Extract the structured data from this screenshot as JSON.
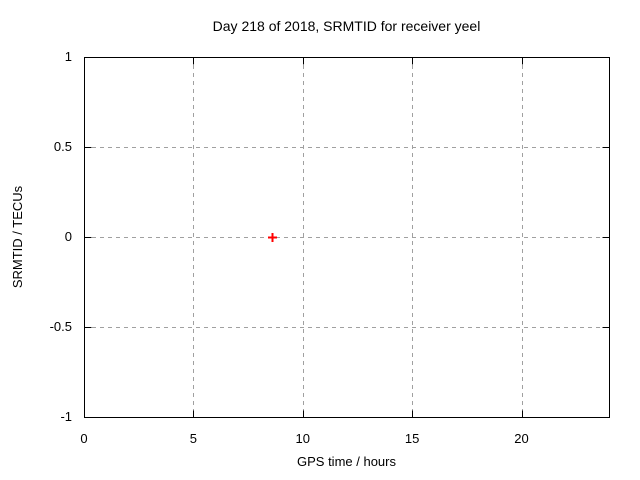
{
  "chart_data": {
    "type": "scatter",
    "title": "Day 218 of 2018, SRMTID for receiver yeel",
    "xlabel": "GPS time / hours",
    "ylabel": "SRMTID / TECUs",
    "xlim": [
      0,
      24
    ],
    "ylim": [
      -1,
      1
    ],
    "xticks": [
      {
        "value": 0,
        "label": "0"
      },
      {
        "value": 5,
        "label": "5"
      },
      {
        "value": 10,
        "label": "10"
      },
      {
        "value": 15,
        "label": "15"
      },
      {
        "value": 20,
        "label": "20"
      }
    ],
    "yticks": [
      {
        "value": 1,
        "label": "1"
      },
      {
        "value": 0.5,
        "label": "0.5"
      },
      {
        "value": 0,
        "label": "0"
      },
      {
        "value": -0.5,
        "label": "-0.5"
      },
      {
        "value": -1,
        "label": "-1"
      }
    ],
    "grid": true,
    "legend": "none",
    "colors": {
      "background": "#ffffff",
      "axis": "#000000",
      "grid": "#a0a0a0",
      "text": "#000000",
      "marker": "#ff0000"
    },
    "series": [
      {
        "marker": "plus",
        "color": "#ff0000",
        "points": [
          {
            "x": 8.6,
            "y": 0.0
          }
        ]
      }
    ]
  }
}
